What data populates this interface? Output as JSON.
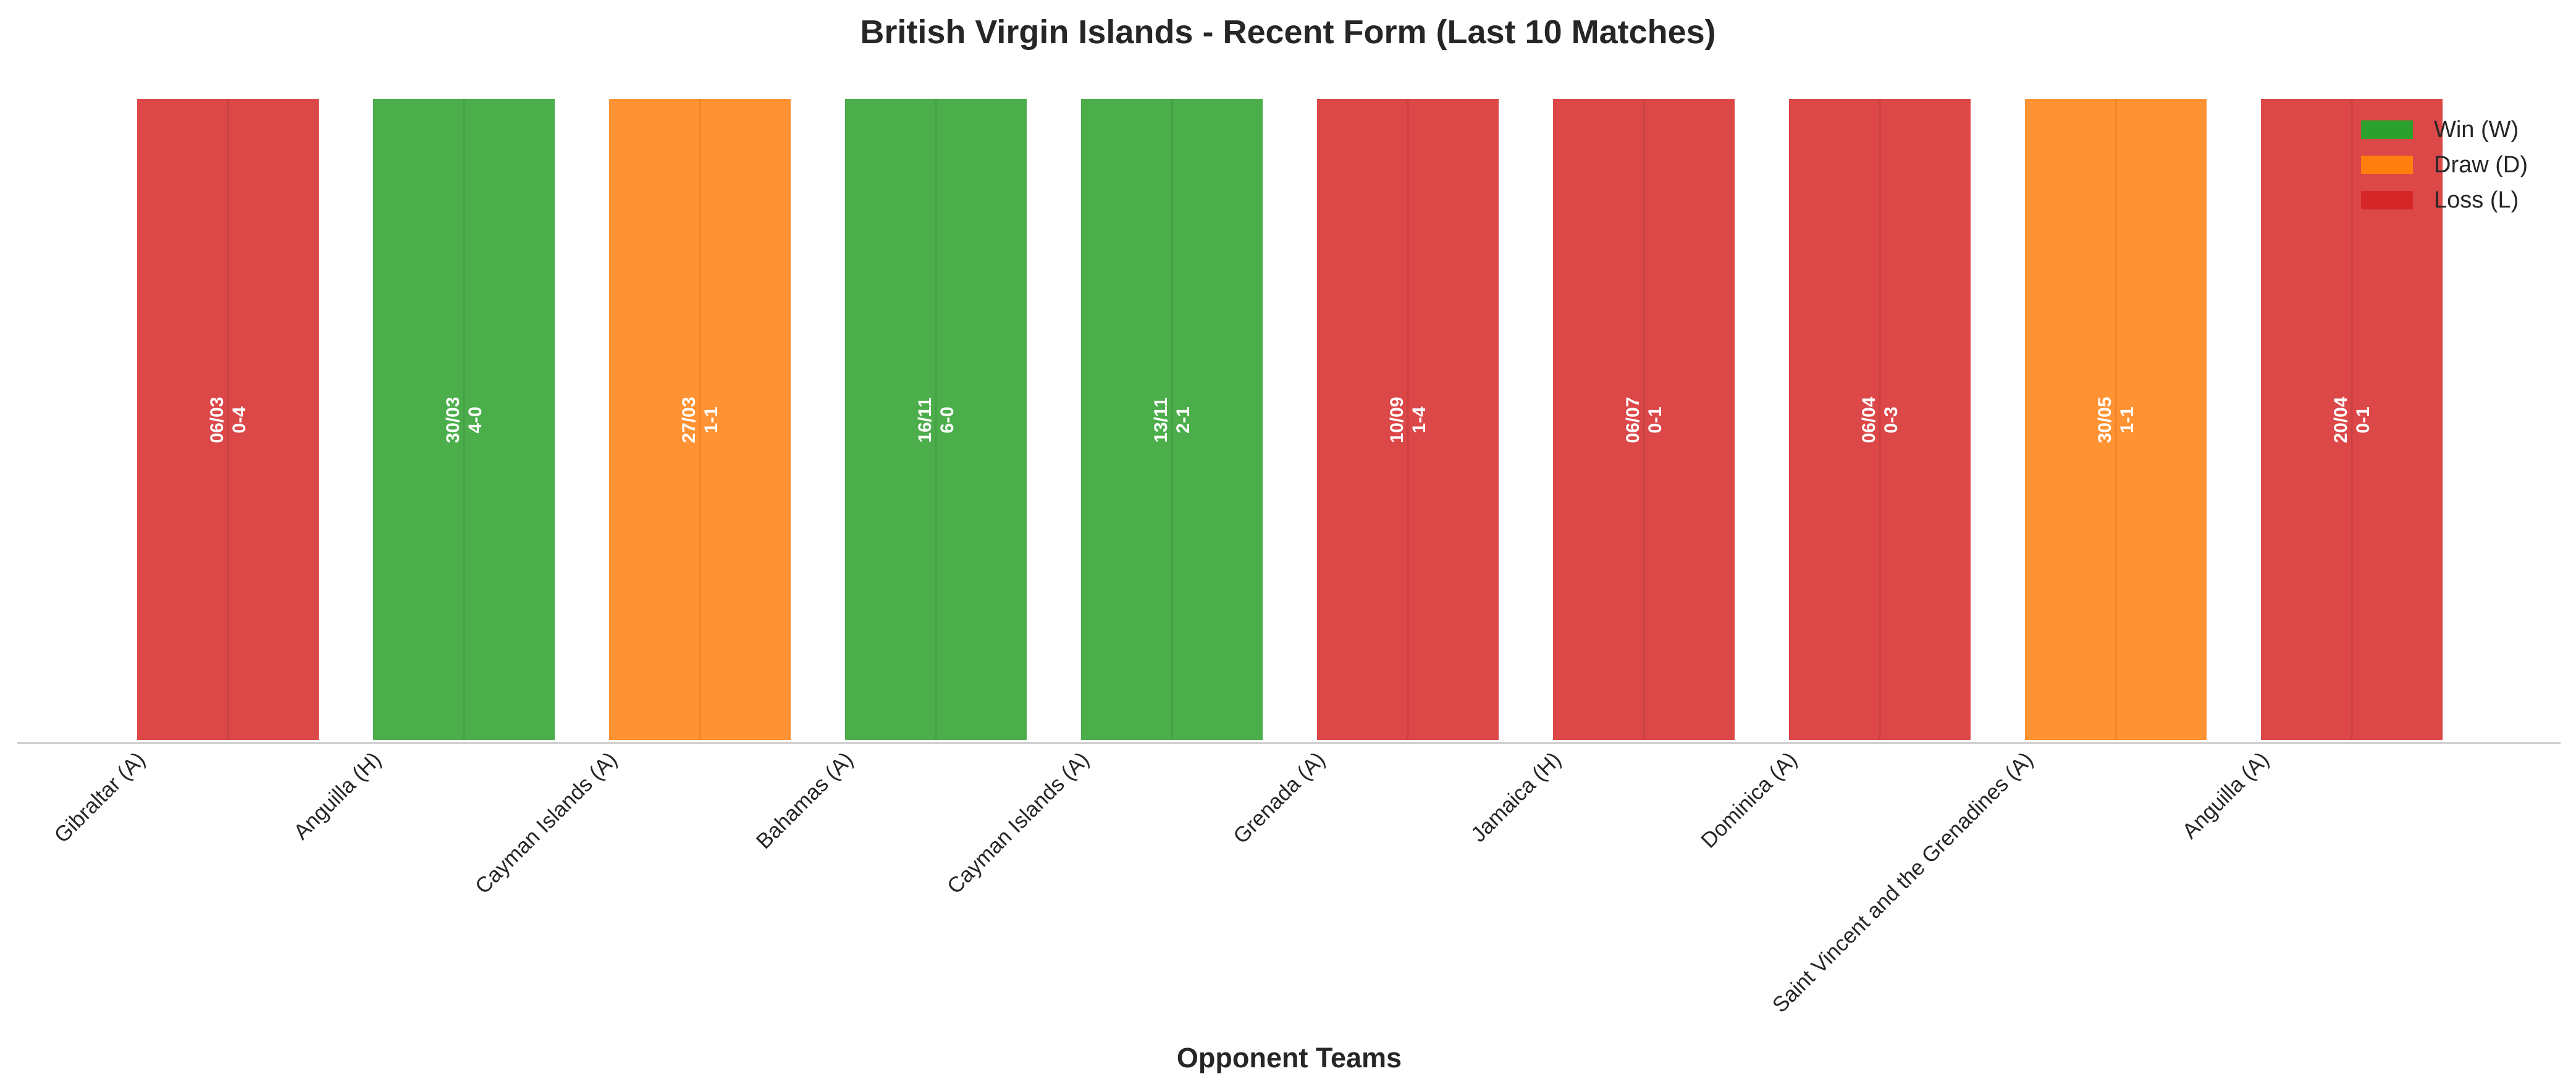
{
  "chart_data": {
    "type": "bar",
    "title": "British Virgin Islands - Recent Form (Last 10 Matches)",
    "xlabel": "Opponent Teams",
    "ylabel": "",
    "categories": [
      "Gibraltar (A)",
      "Anguilla (H)",
      "Cayman Islands (A)",
      "Bahamas (A)",
      "Cayman Islands (A)",
      "Grenada (A)",
      "Jamaica (H)",
      "Dominica (A)",
      "Saint Vincent and the Grenadines (A)",
      "Anguilla (A)"
    ],
    "values": [
      1,
      1,
      1,
      1,
      1,
      1,
      1,
      1,
      1,
      1
    ],
    "results": [
      "L",
      "W",
      "D",
      "W",
      "W",
      "L",
      "L",
      "L",
      "D",
      "L"
    ],
    "dates": [
      "06/03",
      "30/03",
      "27/03",
      "16/11",
      "13/11",
      "10/09",
      "06/07",
      "06/04",
      "30/05",
      "20/04"
    ],
    "scores": [
      "0-4",
      "4-0",
      "1-1",
      "6-0",
      "2-1",
      "1-4",
      "0-1",
      "0-3",
      "1-1",
      "0-1"
    ],
    "ylim": [
      0,
      1
    ],
    "grid": false,
    "legend_position": "top-right",
    "legend": [
      {
        "key": "W",
        "label": "Win (W)",
        "color": "#2ca02c"
      },
      {
        "key": "D",
        "label": "Draw (D)",
        "color": "#ff7f0e"
      },
      {
        "key": "L",
        "label": "Loss (L)",
        "color": "#d62728"
      }
    ]
  }
}
